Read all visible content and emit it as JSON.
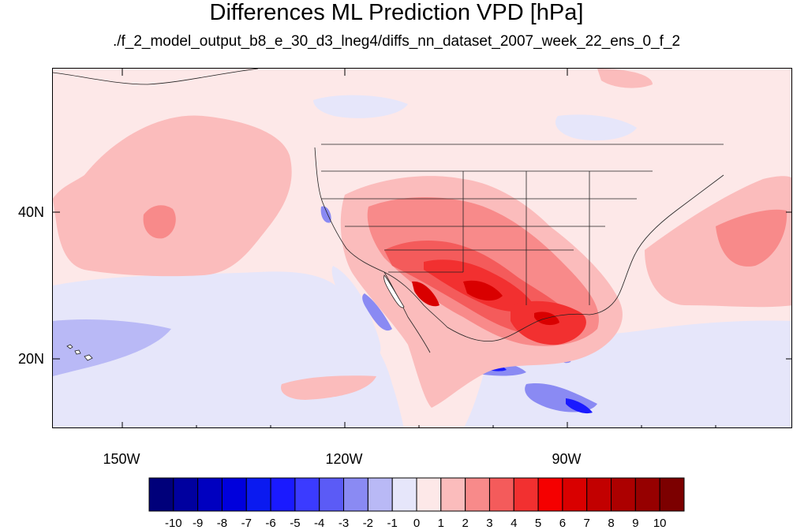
{
  "title": "Differences ML Prediction VPD [hPa]",
  "subtitle": "./f_2_model_output_b8_e_30_d3_lneg4/diffs_nn_dataset_2007_week_22_ens_0_f_2",
  "y_axis_labels": [
    "40N",
    "20N"
  ],
  "x_axis_labels": [
    "150W",
    "120W",
    "90W"
  ],
  "colorbar": {
    "labels": [
      "-10",
      "-9",
      "-8",
      "-7",
      "-6",
      "-5",
      "-4",
      "-3",
      "-2",
      "-1",
      "0",
      "1",
      "2",
      "3",
      "4",
      "5",
      "6",
      "7",
      "8",
      "9",
      "10"
    ],
    "colors": [
      "#00007a",
      "#00009f",
      "#0000c0",
      "#0000dc",
      "#0a1af0",
      "#1a1aff",
      "#3b3bff",
      "#5b5bf6",
      "#8a8af3",
      "#b9b9f6",
      "#e6e6fa",
      "#fde8e8",
      "#fbbcbc",
      "#f88a8a",
      "#f45b5b",
      "#f23030",
      "#f50000",
      "#d90000",
      "#c20000",
      "#ac0000",
      "#960000",
      "#7c0000"
    ]
  },
  "legend_colors": {
    "background": "#fde8e8",
    "weak_positive": "#fbbcbc",
    "moderate_positive": "#f88a8a",
    "strong_positive": "#f23030",
    "weak_negative": "#e6e6fa",
    "moderate_negative": "#8a8af3",
    "strong_negative": "#1a1aff"
  }
}
